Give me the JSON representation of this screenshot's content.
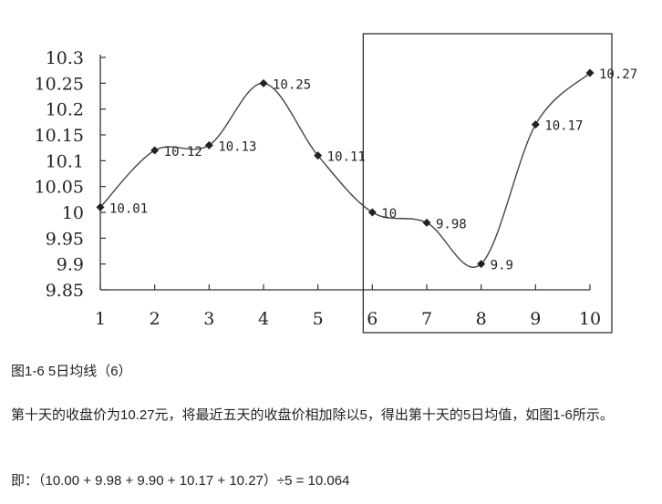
{
  "chart_data": {
    "type": "line",
    "x": [
      1,
      2,
      3,
      4,
      5,
      6,
      7,
      8,
      9,
      10
    ],
    "values": [
      10.01,
      10.12,
      10.13,
      10.25,
      10.11,
      10.0,
      9.98,
      9.9,
      10.17,
      10.27
    ],
    "data_labels": [
      "10.01",
      "10.12",
      "10.13",
      "10.25",
      "10.11",
      "10",
      "9.98",
      "9.9",
      "10.17",
      "10.27"
    ],
    "x_tick_labels": [
      "1",
      "2",
      "3",
      "4",
      "5",
      "6",
      "7",
      "8",
      "9",
      "10"
    ],
    "y_tick_labels": [
      "10.3",
      "10.25",
      "10.2",
      "10.15",
      "10.1",
      "10.05",
      "10",
      "9.95",
      "9.9",
      "9.85"
    ],
    "y_ticks": [
      10.3,
      10.25,
      10.2,
      10.15,
      10.1,
      10.05,
      10.0,
      9.95,
      9.9,
      9.85
    ],
    "ylim": [
      9.85,
      10.3
    ],
    "xlim": [
      1,
      10
    ],
    "title": "",
    "xlabel": "",
    "ylabel": "",
    "grid": false,
    "highlight_box": {
      "from_x": 6,
      "to_x": 10
    },
    "line_color": "#444444",
    "marker": "diamond"
  },
  "caption": "图1-6 5日均线（6）",
  "paragraph": "第十天的收盘价为10.27元，将最近五天的收盘价相加除以5，得出第十天的5日均值，如图1-6所示。",
  "formula": "即：（10.00 + 9.98 + 9.90 + 10.17 + 10.27）÷5 = 10.064"
}
